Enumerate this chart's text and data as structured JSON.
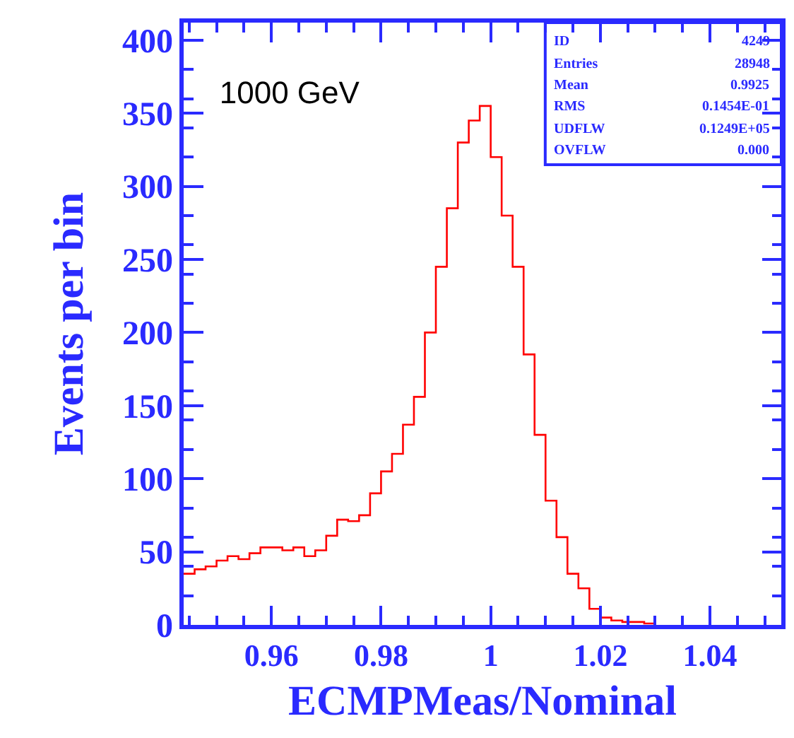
{
  "chart_data": {
    "type": "histogram",
    "title": "1000 GeV",
    "xlabel": "ECMPMeas/Nominal",
    "ylabel": "Events per bin",
    "bins": [
      0.944,
      0.946,
      0.948,
      0.95,
      0.952,
      0.954,
      0.956,
      0.958,
      0.96,
      0.962,
      0.964,
      0.966,
      0.968,
      0.97,
      0.972,
      0.974,
      0.976,
      0.978,
      0.98,
      0.982,
      0.984,
      0.986,
      0.988,
      0.99,
      0.992,
      0.994,
      0.996,
      0.998,
      1.0,
      1.002,
      1.004,
      1.006,
      1.008,
      1.01,
      1.012,
      1.014,
      1.016,
      1.018,
      1.02,
      1.022,
      1.024,
      1.026,
      1.028,
      1.03
    ],
    "values": [
      35,
      38,
      40,
      44,
      47,
      45,
      49,
      53,
      53,
      51,
      53,
      47,
      51,
      61,
      72,
      71,
      75,
      90,
      105,
      117,
      137,
      156,
      200,
      245,
      285,
      330,
      345,
      355,
      320,
      280,
      245,
      185,
      130,
      85,
      60,
      35,
      25,
      11,
      5,
      3,
      2,
      2,
      1
    ],
    "color": "#ff0000",
    "xlim": [
      0.944,
      1.053
    ],
    "xticks": [
      0.96,
      0.98,
      {
        "value": 1.0,
        "label": "1"
      },
      1.02,
      1.04
    ],
    "ylim": [
      0,
      412
    ],
    "yticks": [
      0,
      50,
      100,
      150,
      200,
      250,
      300,
      350,
      400
    ],
    "grid": false,
    "annotations": [
      "ID",
      "4249",
      "Entries",
      "28948",
      "Mean",
      "0.9925",
      "RMS",
      "0.1454E-01",
      "UDFLW",
      "0.1249E+05",
      "OVFLW",
      "0.000"
    ]
  }
}
